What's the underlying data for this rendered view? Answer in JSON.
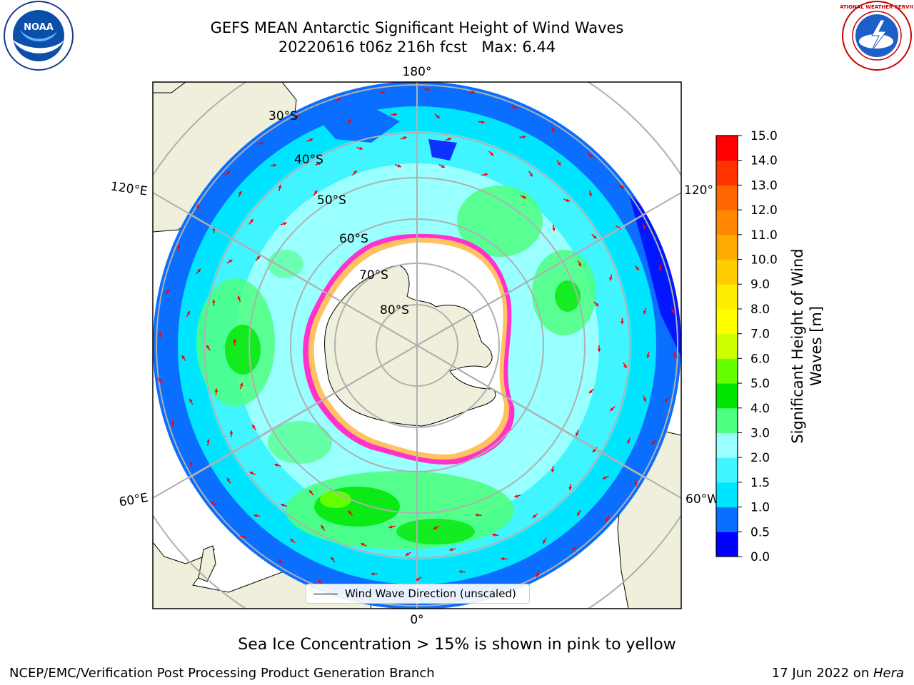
{
  "title_line1": "GEFS MEAN Antarctic Significant Height of Wind Waves",
  "title_line2": "20220616 t06z 216h fcst   Max: 6.44",
  "longitude_labels": {
    "top": "180°",
    "bottom": "0°",
    "left_upper": "120°E",
    "left_lower": "60°E",
    "right_upper": "120°",
    "right_lower": "60°W"
  },
  "latitude_labels": [
    "30°S",
    "40°S",
    "50°S",
    "60°S",
    "70°S",
    "80°S"
  ],
  "legend": {
    "wind_wave_label": "Wind Wave Direction (unscaled)"
  },
  "colorbar": {
    "title": "Significant Height of Wind Waves [m]",
    "ticks": [
      "0.0",
      "0.5",
      "1.0",
      "1.5",
      "2.0",
      "3.0",
      "4.0",
      "5.0",
      "6.0",
      "7.0",
      "8.0",
      "9.0",
      "10.0",
      "11.0",
      "12.0",
      "13.0",
      "14.0",
      "15.0"
    ],
    "colors": [
      "#0000ff",
      "#0a6eff",
      "#00e5ff",
      "#40f5ff",
      "#99ffff",
      "#4dff80",
      "#00e600",
      "#66ff00",
      "#ccff00",
      "#ffff00",
      "#ffee00",
      "#ffcc00",
      "#ffaa00",
      "#ff8800",
      "#ff6600",
      "#ff3300",
      "#ff0000"
    ]
  },
  "ice_note": "Sea Ice Concentration > 15% is shown in pink to yellow",
  "credit": "NCEP/EMC/Verification Post Processing Product Generation Branch",
  "run_date": "17 Jun 2022 on ",
  "run_host": "Hera",
  "logos": {
    "left": "NOAA",
    "right": "NATIONAL WEATHER SERVICE"
  },
  "colors": {
    "arrow": "#ff0000",
    "land": "#efefdb",
    "ocean_base": "#99ffff",
    "ice_shelf": "#ffffff"
  }
}
